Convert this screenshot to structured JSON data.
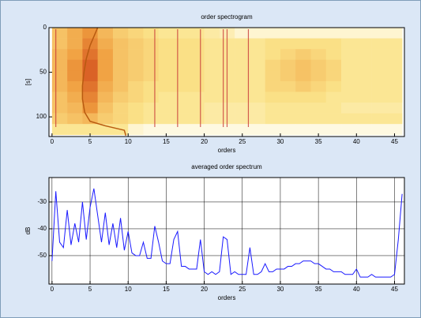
{
  "chart_data": [
    {
      "type": "heatmap",
      "title": "order spectrogram",
      "xlabel": "orders",
      "ylabel": "[s]",
      "xlim": [
        -0.4,
        46.3
      ],
      "ylim": [
        0,
        122
      ],
      "y_reversed": true,
      "xticks": [
        0,
        5,
        10,
        15,
        20,
        25,
        30,
        35,
        40,
        45
      ],
      "yticks": [
        0,
        50,
        100
      ],
      "colormap": [
        "#fffdf0",
        "#fbe38a",
        "#f0a040",
        "#c83010"
      ],
      "xbins": [
        0,
        2,
        4,
        6,
        8,
        10,
        12,
        14,
        16,
        18,
        20,
        22,
        24,
        26,
        28,
        30,
        32,
        34,
        36,
        38,
        40,
        42,
        44,
        46
      ],
      "ybins": [
        0,
        12,
        24,
        36,
        48,
        60,
        72,
        84,
        96,
        108,
        120
      ],
      "z": [
        [
          0.5,
          0.6,
          0.7,
          0.55,
          0.45,
          0.4,
          0.35,
          0.3,
          0.3,
          0.3,
          0.25,
          0.2,
          0.1,
          0.1,
          0.1,
          0.1,
          0.1,
          0.1,
          0.1,
          0.1,
          0.1,
          0.1,
          0.1
        ],
        [
          0.5,
          0.6,
          0.75,
          0.6,
          0.5,
          0.45,
          0.4,
          0.35,
          0.35,
          0.35,
          0.3,
          0.3,
          0.3,
          0.3,
          0.35,
          0.35,
          0.35,
          0.35,
          0.35,
          0.3,
          0.3,
          0.3,
          0.3
        ],
        [
          0.55,
          0.65,
          0.8,
          0.65,
          0.5,
          0.45,
          0.4,
          0.35,
          0.35,
          0.35,
          0.3,
          0.3,
          0.3,
          0.3,
          0.35,
          0.4,
          0.45,
          0.4,
          0.35,
          0.3,
          0.3,
          0.3,
          0.3
        ],
        [
          0.55,
          0.7,
          0.85,
          0.65,
          0.5,
          0.45,
          0.4,
          0.35,
          0.35,
          0.35,
          0.3,
          0.3,
          0.3,
          0.3,
          0.4,
          0.45,
          0.5,
          0.45,
          0.4,
          0.3,
          0.3,
          0.3,
          0.3
        ],
        [
          0.55,
          0.7,
          0.85,
          0.65,
          0.5,
          0.45,
          0.4,
          0.35,
          0.35,
          0.35,
          0.3,
          0.3,
          0.3,
          0.3,
          0.4,
          0.45,
          0.5,
          0.45,
          0.4,
          0.3,
          0.3,
          0.3,
          0.3
        ],
        [
          0.55,
          0.65,
          0.8,
          0.6,
          0.5,
          0.4,
          0.35,
          0.35,
          0.35,
          0.35,
          0.3,
          0.3,
          0.3,
          0.3,
          0.4,
          0.4,
          0.45,
          0.4,
          0.35,
          0.3,
          0.3,
          0.3,
          0.3
        ],
        [
          0.5,
          0.6,
          0.75,
          0.55,
          0.45,
          0.4,
          0.35,
          0.3,
          0.3,
          0.3,
          0.3,
          0.3,
          0.3,
          0.3,
          0.35,
          0.35,
          0.35,
          0.35,
          0.3,
          0.3,
          0.3,
          0.3,
          0.3
        ],
        [
          0.5,
          0.55,
          0.7,
          0.5,
          0.4,
          0.35,
          0.3,
          0.3,
          0.3,
          0.3,
          0.25,
          0.25,
          0.25,
          0.25,
          0.3,
          0.3,
          0.3,
          0.3,
          0.3,
          0.25,
          0.25,
          0.25,
          0.25
        ],
        [
          0.45,
          0.5,
          0.55,
          0.45,
          0.4,
          0.35,
          0.3,
          0.3,
          0.3,
          0.3,
          0.25,
          0.25,
          0.25,
          0.25,
          0.3,
          0.3,
          0.3,
          0.3,
          0.3,
          0.3,
          0.3,
          0.3,
          0.3
        ],
        [
          0.3,
          0.3,
          0.3,
          0.3,
          0.3,
          0.1,
          0.05,
          0.05,
          0.05,
          0.05,
          0.05,
          0.05,
          0.05,
          0.05,
          0.05,
          0.05,
          0.05,
          0.05,
          0.05,
          0.05,
          0.05,
          0.05,
          0.05
        ]
      ],
      "order_lines": {
        "color": "#c83838",
        "x": [
          0.5,
          13.5,
          16.5,
          19.5,
          22.5,
          23,
          25.8
        ]
      },
      "trace": {
        "color": "#b85a10",
        "x": [
          6,
          5.5,
          5,
          4.5,
          4.2,
          4,
          4,
          4.3,
          5,
          7,
          9.5,
          9.7
        ],
        "y": [
          0,
          10,
          20,
          35,
          50,
          65,
          80,
          95,
          105,
          110,
          115,
          121
        ]
      }
    },
    {
      "type": "line",
      "title": "averaged order spectrum",
      "xlabel": "orders",
      "ylabel": "dB",
      "xlim": [
        -0.4,
        46.3
      ],
      "ylim": [
        -60.6,
        -20.9
      ],
      "grid": true,
      "color": "#1a1aff",
      "xticks": [
        0,
        5,
        10,
        15,
        20,
        25,
        30,
        35,
        40,
        45
      ],
      "yticks": [
        -30,
        -40,
        -50
      ],
      "x": [
        0,
        0.5,
        1,
        1.5,
        2,
        2.5,
        3,
        3.5,
        4,
        4.5,
        5,
        5.5,
        6,
        6.5,
        7,
        7.5,
        8,
        8.5,
        9,
        9.5,
        10,
        10.5,
        11,
        11.5,
        12,
        12.5,
        13,
        13.5,
        14,
        14.5,
        15,
        15.5,
        16,
        16.5,
        17,
        17.5,
        18,
        18.5,
        19,
        19.5,
        20,
        20.5,
        21,
        21.5,
        22,
        22.5,
        23,
        23.5,
        24,
        24.5,
        25,
        25.5,
        26,
        26.5,
        27,
        27.5,
        28,
        28.5,
        29,
        29.5,
        30,
        30.5,
        31,
        31.5,
        32,
        32.5,
        33,
        33.5,
        34,
        34.5,
        35,
        35.5,
        36,
        36.5,
        37,
        37.5,
        38,
        38.5,
        39,
        39.5,
        40,
        40.5,
        41,
        41.5,
        42,
        42.5,
        43,
        43.5,
        44,
        44.5,
        45,
        45.5,
        46
      ],
      "values": [
        -52,
        -26,
        -45,
        -47,
        -33,
        -46,
        -38,
        -45,
        -30,
        -44,
        -32,
        -25,
        -35,
        -45,
        -34,
        -46,
        -38,
        -47,
        -36,
        -48,
        -41,
        -49,
        -50,
        -50,
        -45,
        -51,
        -51,
        -39,
        -45,
        -52,
        -53,
        -53,
        -44,
        -41,
        -54,
        -54,
        -55,
        -55,
        -55,
        -44,
        -56,
        -57,
        -56,
        -57,
        -56,
        -43,
        -44,
        -57,
        -56,
        -57,
        -57,
        -57,
        -47,
        -57,
        -57,
        -56,
        -53,
        -56,
        -56,
        -55,
        -55,
        -55,
        -54,
        -54,
        -53,
        -53,
        -52,
        -52,
        -52,
        -53,
        -53,
        -54,
        -55,
        -55,
        -56,
        -56,
        -56,
        -57,
        -57,
        -57,
        -55,
        -58,
        -58,
        -58,
        -57,
        -58,
        -58,
        -58,
        -58,
        -58,
        -57,
        -44,
        -27
      ]
    }
  ]
}
